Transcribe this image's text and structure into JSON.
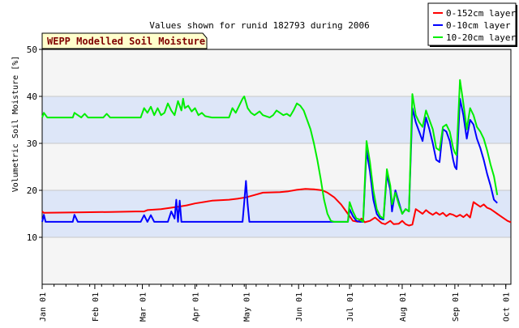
{
  "chart_data": {
    "type": "line",
    "title": "Values shown for runid 182793 during 2006",
    "badge": "WEPP Modelled Soil Moisture",
    "ylabel": "Volumetric Soil Moisture [%]",
    "xlabel": "",
    "ylim": [
      0,
      50
    ],
    "xlim": [
      0,
      276
    ],
    "yticks": [
      10,
      20,
      30,
      40,
      50
    ],
    "xticks": [
      {
        "day": 0,
        "label": "Jan 01"
      },
      {
        "day": 31,
        "label": "Feb 01"
      },
      {
        "day": 59,
        "label": "Mar 01"
      },
      {
        "day": 90,
        "label": "Apr 01"
      },
      {
        "day": 120,
        "label": "May 01"
      },
      {
        "day": 151,
        "label": "Jun 01"
      },
      {
        "day": 181,
        "label": "Jul 01"
      },
      {
        "day": 212,
        "label": "Aug 01"
      },
      {
        "day": 243,
        "label": "Sep 01"
      },
      {
        "day": 273,
        "label": "Oct 01"
      }
    ],
    "grid": true,
    "banded_background": true,
    "legend_position": "top-right",
    "colors": {
      "plot_bg": "#f5f5f5",
      "band": "#dde6f8",
      "badge_bg": "#ffffcc",
      "badge_text": "#800000"
    },
    "series": [
      {
        "name": "0-152cm layer",
        "color": "#ff0000",
        "points": [
          [
            0,
            15.5
          ],
          [
            1,
            15.2
          ],
          [
            20,
            15.3
          ],
          [
            40,
            15.4
          ],
          [
            55,
            15.5
          ],
          [
            60,
            15.5
          ],
          [
            62,
            15.8
          ],
          [
            70,
            16.0
          ],
          [
            80,
            16.5
          ],
          [
            85,
            16.8
          ],
          [
            90,
            17.2
          ],
          [
            100,
            17.8
          ],
          [
            110,
            18.0
          ],
          [
            115,
            18.2
          ],
          [
            120,
            18.5
          ],
          [
            125,
            19.0
          ],
          [
            130,
            19.5
          ],
          [
            140,
            19.6
          ],
          [
            145,
            19.8
          ],
          [
            150,
            20.1
          ],
          [
            155,
            20.3
          ],
          [
            160,
            20.2
          ],
          [
            165,
            20.0
          ],
          [
            168,
            19.5
          ],
          [
            172,
            18.5
          ],
          [
            176,
            17.0
          ],
          [
            180,
            15.0
          ],
          [
            183,
            13.5
          ],
          [
            186,
            13.3
          ],
          [
            188,
            14.0
          ],
          [
            190,
            13.2
          ],
          [
            193,
            13.5
          ],
          [
            196,
            14.2
          ],
          [
            198,
            13.6
          ],
          [
            200,
            13.0
          ],
          [
            202,
            12.8
          ],
          [
            205,
            13.5
          ],
          [
            207,
            12.8
          ],
          [
            210,
            12.9
          ],
          [
            212,
            13.5
          ],
          [
            214,
            12.8
          ],
          [
            216,
            12.5
          ],
          [
            218,
            12.7
          ],
          [
            220,
            16.0
          ],
          [
            222,
            15.5
          ],
          [
            224,
            15.0
          ],
          [
            226,
            15.8
          ],
          [
            228,
            15.2
          ],
          [
            230,
            14.8
          ],
          [
            232,
            15.3
          ],
          [
            234,
            14.8
          ],
          [
            236,
            15.2
          ],
          [
            238,
            14.5
          ],
          [
            240,
            15.0
          ],
          [
            242,
            14.8
          ],
          [
            244,
            14.4
          ],
          [
            246,
            14.8
          ],
          [
            248,
            14.3
          ],
          [
            250,
            14.9
          ],
          [
            252,
            14.2
          ],
          [
            254,
            17.5
          ],
          [
            256,
            17.0
          ],
          [
            258,
            16.5
          ],
          [
            260,
            17.0
          ],
          [
            262,
            16.3
          ],
          [
            264,
            16.0
          ],
          [
            266,
            15.5
          ],
          [
            268,
            15.0
          ],
          [
            270,
            14.5
          ],
          [
            272,
            14.0
          ],
          [
            274,
            13.5
          ],
          [
            276,
            13.2
          ]
        ]
      },
      {
        "name": "0-10cm layer",
        "color": "#0000ff",
        "points": [
          [
            0,
            13.3
          ],
          [
            1,
            14.8
          ],
          [
            2,
            13.3
          ],
          [
            18,
            13.3
          ],
          [
            19,
            14.8
          ],
          [
            21,
            13.3
          ],
          [
            58,
            13.3
          ],
          [
            60,
            14.7
          ],
          [
            62,
            13.3
          ],
          [
            64,
            14.7
          ],
          [
            66,
            13.3
          ],
          [
            74,
            13.3
          ],
          [
            76,
            15.5
          ],
          [
            78,
            14.0
          ],
          [
            79,
            18.0
          ],
          [
            80,
            13.3
          ],
          [
            81,
            17.8
          ],
          [
            82,
            13.3
          ],
          [
            118,
            13.3
          ],
          [
            119,
            17.5
          ],
          [
            120,
            22.0
          ],
          [
            121,
            17.0
          ],
          [
            122,
            13.3
          ],
          [
            170,
            13.3
          ],
          [
            180,
            13.3
          ],
          [
            181,
            16.0
          ],
          [
            183,
            14.5
          ],
          [
            185,
            13.5
          ],
          [
            187,
            13.3
          ],
          [
            189,
            13.3
          ],
          [
            191,
            28.5
          ],
          [
            193,
            24.0
          ],
          [
            195,
            18.0
          ],
          [
            197,
            15.0
          ],
          [
            199,
            14.0
          ],
          [
            201,
            13.8
          ],
          [
            203,
            23.5
          ],
          [
            205,
            20.0
          ],
          [
            206,
            15.5
          ],
          [
            208,
            20.0
          ],
          [
            210,
            17.5
          ],
          [
            212,
            15.0
          ],
          [
            214,
            16.0
          ],
          [
            216,
            15.5
          ],
          [
            218,
            37.5
          ],
          [
            220,
            34.5
          ],
          [
            222,
            32.5
          ],
          [
            224,
            30.5
          ],
          [
            226,
            35.5
          ],
          [
            228,
            33.0
          ],
          [
            230,
            30.0
          ],
          [
            232,
            26.5
          ],
          [
            234,
            26.0
          ],
          [
            236,
            33.0
          ],
          [
            238,
            32.5
          ],
          [
            240,
            30.5
          ],
          [
            242,
            26.5
          ],
          [
            243,
            25.0
          ],
          [
            244,
            24.5
          ],
          [
            246,
            39.5
          ],
          [
            248,
            36.0
          ],
          [
            250,
            31.0
          ],
          [
            252,
            35.0
          ],
          [
            254,
            34.0
          ],
          [
            256,
            31.0
          ],
          [
            258,
            29.0
          ],
          [
            260,
            26.5
          ],
          [
            262,
            23.5
          ],
          [
            264,
            21.0
          ],
          [
            266,
            18.0
          ],
          [
            268,
            17.3
          ]
        ]
      },
      {
        "name": "10-20cm layer",
        "color": "#00ee00",
        "points": [
          [
            0,
            35.5
          ],
          [
            1,
            36.5
          ],
          [
            3,
            35.5
          ],
          [
            18,
            35.5
          ],
          [
            19,
            36.5
          ],
          [
            21,
            36.0
          ],
          [
            23,
            35.5
          ],
          [
            25,
            36.3
          ],
          [
            27,
            35.5
          ],
          [
            36,
            35.5
          ],
          [
            38,
            36.3
          ],
          [
            40,
            35.5
          ],
          [
            58,
            35.5
          ],
          [
            60,
            37.5
          ],
          [
            62,
            36.5
          ],
          [
            64,
            37.8
          ],
          [
            66,
            36.0
          ],
          [
            68,
            37.5
          ],
          [
            70,
            36.0
          ],
          [
            72,
            36.5
          ],
          [
            74,
            38.5
          ],
          [
            76,
            37.0
          ],
          [
            78,
            36.0
          ],
          [
            80,
            39.0
          ],
          [
            82,
            37.0
          ],
          [
            83,
            39.5
          ],
          [
            84,
            37.5
          ],
          [
            86,
            38.0
          ],
          [
            88,
            36.8
          ],
          [
            90,
            37.5
          ],
          [
            92,
            36.0
          ],
          [
            94,
            36.5
          ],
          [
            96,
            35.8
          ],
          [
            100,
            35.5
          ],
          [
            110,
            35.5
          ],
          [
            112,
            37.5
          ],
          [
            114,
            36.5
          ],
          [
            116,
            38.0
          ],
          [
            118,
            39.5
          ],
          [
            119,
            40.0
          ],
          [
            121,
            37.5
          ],
          [
            123,
            36.5
          ],
          [
            125,
            36.0
          ],
          [
            128,
            36.8
          ],
          [
            130,
            36.0
          ],
          [
            134,
            35.5
          ],
          [
            136,
            36.0
          ],
          [
            138,
            37.0
          ],
          [
            140,
            36.5
          ],
          [
            142,
            36.0
          ],
          [
            144,
            36.3
          ],
          [
            146,
            35.8
          ],
          [
            148,
            37.0
          ],
          [
            150,
            38.5
          ],
          [
            152,
            38.0
          ],
          [
            154,
            37.0
          ],
          [
            156,
            35.0
          ],
          [
            158,
            33.0
          ],
          [
            160,
            30.0
          ],
          [
            162,
            26.5
          ],
          [
            164,
            22.5
          ],
          [
            166,
            18.0
          ],
          [
            168,
            15.0
          ],
          [
            170,
            13.5
          ],
          [
            172,
            13.3
          ],
          [
            174,
            13.3
          ],
          [
            176,
            13.3
          ],
          [
            178,
            13.3
          ],
          [
            180,
            13.3
          ],
          [
            181,
            17.5
          ],
          [
            183,
            15.5
          ],
          [
            185,
            14.0
          ],
          [
            187,
            13.8
          ],
          [
            189,
            13.3
          ],
          [
            191,
            30.5
          ],
          [
            193,
            26.0
          ],
          [
            195,
            20.0
          ],
          [
            197,
            16.0
          ],
          [
            199,
            14.5
          ],
          [
            201,
            14.0
          ],
          [
            203,
            24.5
          ],
          [
            205,
            21.0
          ],
          [
            206,
            17.0
          ],
          [
            208,
            19.5
          ],
          [
            210,
            17.0
          ],
          [
            212,
            15.0
          ],
          [
            214,
            16.0
          ],
          [
            216,
            15.5
          ],
          [
            218,
            40.5
          ],
          [
            220,
            36.0
          ],
          [
            222,
            34.5
          ],
          [
            224,
            33.5
          ],
          [
            226,
            37.0
          ],
          [
            228,
            35.0
          ],
          [
            230,
            33.0
          ],
          [
            232,
            29.0
          ],
          [
            234,
            28.5
          ],
          [
            236,
            33.5
          ],
          [
            238,
            34.0
          ],
          [
            240,
            32.5
          ],
          [
            242,
            29.0
          ],
          [
            243,
            28.0
          ],
          [
            244,
            27.5
          ],
          [
            246,
            43.5
          ],
          [
            248,
            38.5
          ],
          [
            250,
            33.0
          ],
          [
            252,
            37.5
          ],
          [
            254,
            36.0
          ],
          [
            256,
            33.5
          ],
          [
            258,
            32.5
          ],
          [
            260,
            31.0
          ],
          [
            262,
            28.5
          ],
          [
            264,
            25.5
          ],
          [
            266,
            23.0
          ],
          [
            268,
            19.0
          ]
        ]
      }
    ]
  }
}
